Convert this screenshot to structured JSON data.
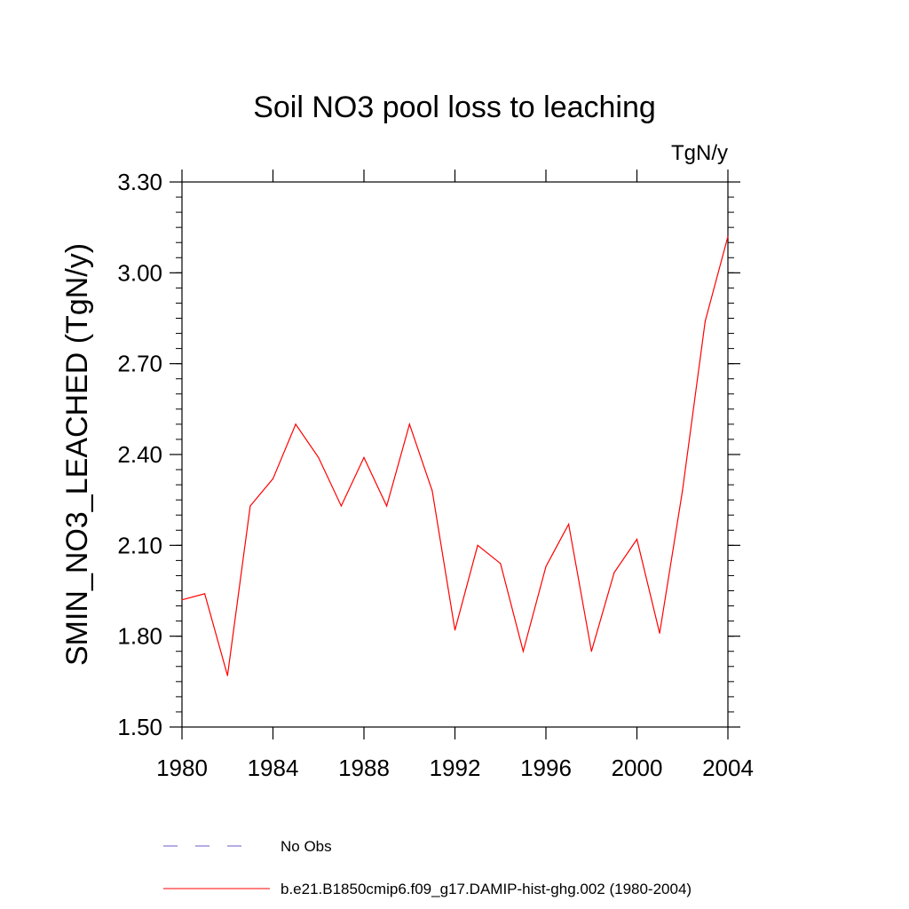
{
  "chart_data": {
    "type": "line",
    "title": "Soil NO3 pool loss to leaching",
    "units_label": "TgN/y",
    "xlabel": "",
    "ylabel": "SMIN_NO3_LEACHED  (TgN/y)",
    "xlim": [
      1980,
      2004
    ],
    "ylim": [
      1.5,
      3.3
    ],
    "x_ticks": [
      1980,
      1984,
      1988,
      1992,
      1996,
      2000,
      2004
    ],
    "y_ticks": [
      "1.50",
      "1.80",
      "2.10",
      "2.40",
      "2.70",
      "3.00",
      "3.30"
    ],
    "grid": false,
    "legend_position": "bottom",
    "series": [
      {
        "name": "b.e21.B1850cmip6.f09_g17.DAMIP-hist-ghg.002 (1980-2004)",
        "color": "#ff0000",
        "style": "solid",
        "x": [
          1980,
          1981,
          1982,
          1983,
          1984,
          1985,
          1986,
          1987,
          1988,
          1989,
          1990,
          1991,
          1992,
          1993,
          1994,
          1995,
          1996,
          1997,
          1998,
          1999,
          2000,
          2001,
          2002,
          2003,
          2004
        ],
        "y": [
          1.92,
          1.94,
          1.67,
          2.23,
          2.32,
          2.5,
          2.39,
          2.23,
          2.39,
          2.23,
          2.5,
          2.28,
          1.82,
          2.1,
          2.04,
          1.75,
          2.03,
          2.17,
          1.75,
          2.01,
          2.12,
          1.81,
          2.28,
          2.84,
          3.12
        ]
      }
    ],
    "legend": [
      {
        "label": "No Obs",
        "color": "#6a5acd",
        "style": "dashed"
      },
      {
        "label": "b.e21.B1850cmip6.f09_g17.DAMIP-hist-ghg.002 (1980-2004)",
        "color": "#ff0000",
        "style": "solid"
      }
    ]
  }
}
